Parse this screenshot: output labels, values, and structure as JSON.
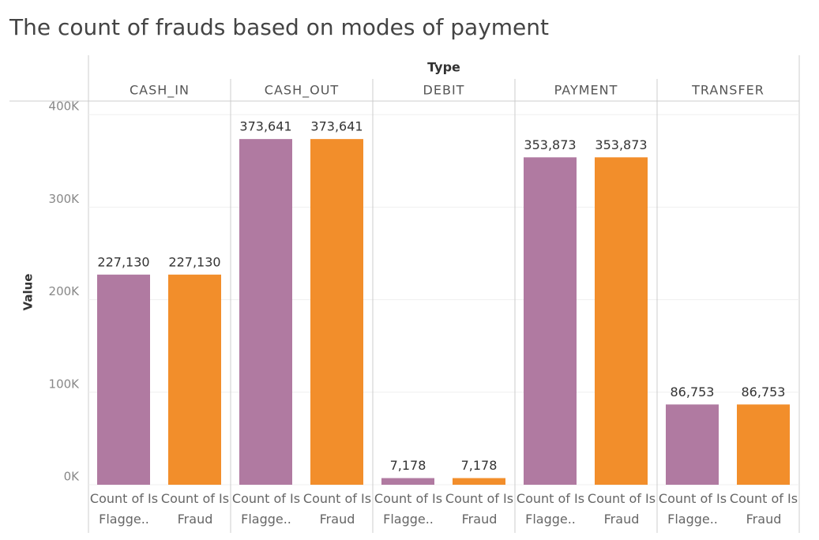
{
  "chart_data": {
    "type": "bar",
    "title": "The count of frauds based on modes of payment",
    "column_header": "Type",
    "y_label": "Value",
    "categories": [
      "CASH_IN",
      "CASH_OUT",
      "DEBIT",
      "PAYMENT",
      "TRANSFER"
    ],
    "series": [
      {
        "name": "Count of Is Flagge..",
        "color": "#b07aa1",
        "values": [
          227130,
          373641,
          7178,
          353873,
          86753
        ],
        "value_labels": [
          "227,130",
          "373,641",
          "7,178",
          "353,873",
          "86,753"
        ]
      },
      {
        "name": "Count of Is Fraud",
        "color": "#f28e2b",
        "values": [
          227130,
          373641,
          7178,
          353873,
          86753
        ],
        "value_labels": [
          "227,130",
          "373,641",
          "7,178",
          "353,873",
          "86,753"
        ]
      }
    ],
    "ylim": [
      0,
      413000
    ],
    "yticks": [
      {
        "value": 0,
        "label": "0K"
      },
      {
        "value": 100000,
        "label": "100K"
      },
      {
        "value": 200000,
        "label": "200K"
      },
      {
        "value": 300000,
        "label": "300K"
      },
      {
        "value": 400000,
        "label": "400K"
      }
    ],
    "grid": true
  }
}
